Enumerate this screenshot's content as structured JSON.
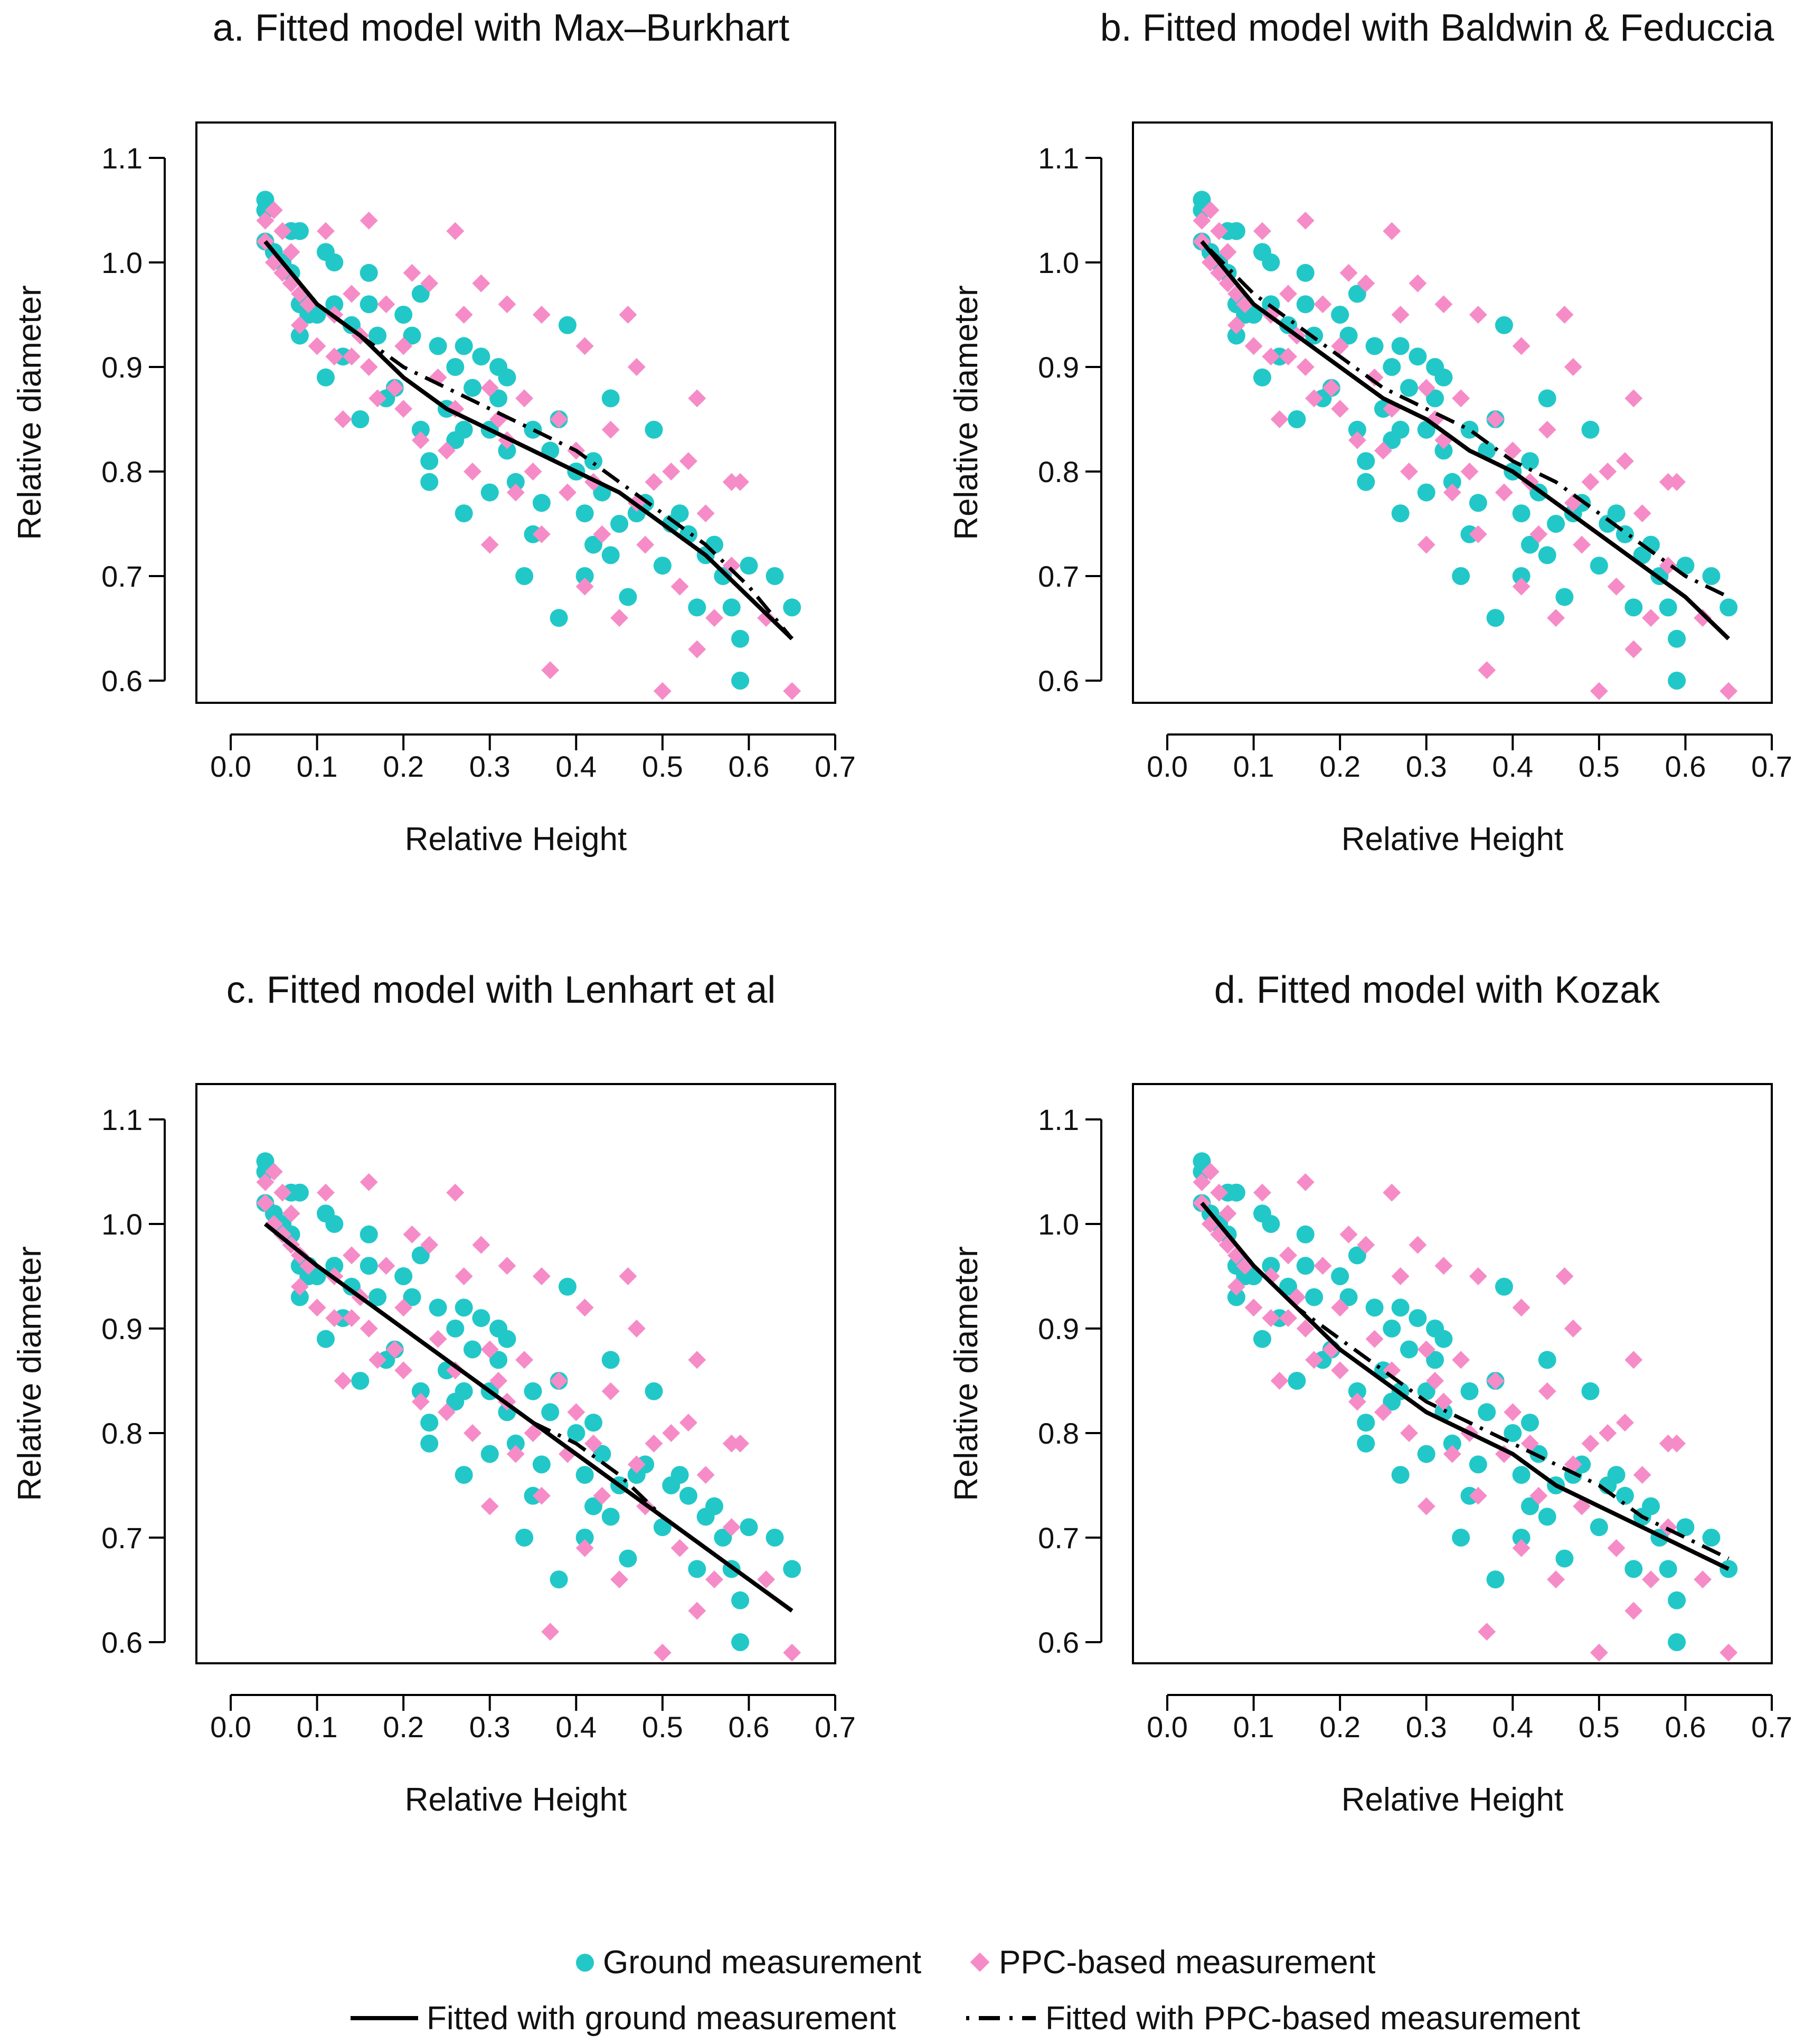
{
  "colors": {
    "ground": "#22C8C8",
    "ppc": "#F58CC8",
    "line": "#000000"
  },
  "legend": {
    "ground_points": "Ground measurement",
    "ppc_points": "PPC-based measurement",
    "ground_line": "Fitted with ground measurement",
    "ppc_line": "Fitted with PPC-based measurement"
  },
  "shared_points": {
    "ground": [
      [
        0.04,
        1.06
      ],
      [
        0.04,
        1.05
      ],
      [
        0.04,
        1.02
      ],
      [
        0.05,
        1.01
      ],
      [
        0.06,
        1.0
      ],
      [
        0.07,
        0.99
      ],
      [
        0.07,
        1.03
      ],
      [
        0.08,
        1.03
      ],
      [
        0.08,
        0.96
      ],
      [
        0.08,
        0.93
      ],
      [
        0.09,
        0.96
      ],
      [
        0.09,
        0.95
      ],
      [
        0.1,
        0.95
      ],
      [
        0.11,
        1.01
      ],
      [
        0.11,
        0.89
      ],
      [
        0.12,
        1.0
      ],
      [
        0.12,
        0.96
      ],
      [
        0.13,
        0.91
      ],
      [
        0.14,
        0.94
      ],
      [
        0.15,
        0.85
      ],
      [
        0.16,
        0.99
      ],
      [
        0.16,
        0.96
      ],
      [
        0.17,
        0.93
      ],
      [
        0.18,
        0.87
      ],
      [
        0.19,
        0.88
      ],
      [
        0.2,
        0.95
      ],
      [
        0.21,
        0.93
      ],
      [
        0.22,
        0.97
      ],
      [
        0.22,
        0.84
      ],
      [
        0.23,
        0.79
      ],
      [
        0.23,
        0.81
      ],
      [
        0.24,
        0.92
      ],
      [
        0.25,
        0.86
      ],
      [
        0.26,
        0.9
      ],
      [
        0.26,
        0.83
      ],
      [
        0.27,
        0.76
      ],
      [
        0.27,
        0.92
      ],
      [
        0.27,
        0.84
      ],
      [
        0.28,
        0.88
      ],
      [
        0.29,
        0.91
      ],
      [
        0.3,
        0.84
      ],
      [
        0.3,
        0.78
      ],
      [
        0.31,
        0.9
      ],
      [
        0.31,
        0.87
      ],
      [
        0.32,
        0.89
      ],
      [
        0.32,
        0.82
      ],
      [
        0.33,
        0.79
      ],
      [
        0.34,
        0.7
      ],
      [
        0.35,
        0.84
      ],
      [
        0.35,
        0.74
      ],
      [
        0.36,
        0.77
      ],
      [
        0.37,
        0.82
      ],
      [
        0.38,
        0.85
      ],
      [
        0.38,
        0.66
      ],
      [
        0.39,
        0.94
      ],
      [
        0.4,
        0.8
      ],
      [
        0.41,
        0.76
      ],
      [
        0.41,
        0.7
      ],
      [
        0.42,
        0.81
      ],
      [
        0.42,
        0.73
      ],
      [
        0.43,
        0.78
      ],
      [
        0.44,
        0.87
      ],
      [
        0.44,
        0.72
      ],
      [
        0.45,
        0.75
      ],
      [
        0.46,
        0.68
      ],
      [
        0.47,
        0.76
      ],
      [
        0.48,
        0.77
      ],
      [
        0.49,
        0.84
      ],
      [
        0.5,
        0.71
      ],
      [
        0.51,
        0.75
      ],
      [
        0.52,
        0.76
      ],
      [
        0.53,
        0.74
      ],
      [
        0.54,
        0.67
      ],
      [
        0.55,
        0.72
      ],
      [
        0.56,
        0.73
      ],
      [
        0.57,
        0.7
      ],
      [
        0.58,
        0.67
      ],
      [
        0.59,
        0.64
      ],
      [
        0.59,
        0.6
      ],
      [
        0.6,
        0.71
      ],
      [
        0.63,
        0.7
      ],
      [
        0.65,
        0.67
      ]
    ],
    "ppc": [
      [
        0.04,
        1.04
      ],
      [
        0.04,
        1.02
      ],
      [
        0.05,
        1.05
      ],
      [
        0.05,
        1.0
      ],
      [
        0.06,
        1.03
      ],
      [
        0.06,
        0.99
      ],
      [
        0.07,
        1.01
      ],
      [
        0.07,
        0.98
      ],
      [
        0.08,
        0.97
      ],
      [
        0.08,
        0.94
      ],
      [
        0.09,
        0.96
      ],
      [
        0.1,
        0.92
      ],
      [
        0.11,
        1.03
      ],
      [
        0.12,
        0.95
      ],
      [
        0.12,
        0.91
      ],
      [
        0.13,
        0.85
      ],
      [
        0.14,
        0.97
      ],
      [
        0.14,
        0.91
      ],
      [
        0.15,
        0.93
      ],
      [
        0.16,
        1.04
      ],
      [
        0.16,
        0.9
      ],
      [
        0.17,
        0.87
      ],
      [
        0.18,
        0.96
      ],
      [
        0.19,
        0.88
      ],
      [
        0.2,
        0.92
      ],
      [
        0.2,
        0.86
      ],
      [
        0.21,
        0.99
      ],
      [
        0.22,
        0.83
      ],
      [
        0.23,
        0.98
      ],
      [
        0.24,
        0.89
      ],
      [
        0.25,
        0.82
      ],
      [
        0.26,
        1.03
      ],
      [
        0.26,
        0.86
      ],
      [
        0.27,
        0.95
      ],
      [
        0.28,
        0.8
      ],
      [
        0.29,
        0.98
      ],
      [
        0.3,
        0.88
      ],
      [
        0.3,
        0.73
      ],
      [
        0.31,
        0.85
      ],
      [
        0.32,
        0.96
      ],
      [
        0.32,
        0.83
      ],
      [
        0.33,
        0.78
      ],
      [
        0.34,
        0.87
      ],
      [
        0.35,
        0.8
      ],
      [
        0.36,
        0.95
      ],
      [
        0.36,
        0.74
      ],
      [
        0.37,
        0.61
      ],
      [
        0.38,
        0.85
      ],
      [
        0.39,
        0.78
      ],
      [
        0.4,
        0.82
      ],
      [
        0.41,
        0.92
      ],
      [
        0.41,
        0.69
      ],
      [
        0.42,
        0.79
      ],
      [
        0.43,
        0.74
      ],
      [
        0.44,
        0.84
      ],
      [
        0.45,
        0.66
      ],
      [
        0.46,
        0.95
      ],
      [
        0.47,
        0.9
      ],
      [
        0.47,
        0.77
      ],
      [
        0.48,
        0.73
      ],
      [
        0.49,
        0.79
      ],
      [
        0.5,
        0.59
      ],
      [
        0.51,
        0.8
      ],
      [
        0.52,
        0.69
      ],
      [
        0.53,
        0.81
      ],
      [
        0.54,
        0.87
      ],
      [
        0.54,
        0.63
      ],
      [
        0.55,
        0.76
      ],
      [
        0.56,
        0.66
      ],
      [
        0.58,
        0.79
      ],
      [
        0.58,
        0.71
      ],
      [
        0.59,
        0.79
      ],
      [
        0.62,
        0.66
      ],
      [
        0.65,
        0.59
      ]
    ]
  },
  "chart_data": [
    {
      "type": "scatter",
      "title": "a. Fitted model with Max–Burkhart",
      "xlabel": "Relative Height",
      "ylabel": "Relative diameter",
      "xlim": [
        0.0,
        0.7
      ],
      "ylim": [
        0.6,
        1.1
      ],
      "xticks": [
        "0.0",
        "0.1",
        "0.2",
        "0.3",
        "0.4",
        "0.5",
        "0.6",
        "0.7"
      ],
      "yticks": [
        "0.6",
        "0.7",
        "0.8",
        "0.9",
        "1.0",
        "1.1"
      ],
      "grid": false,
      "lines": {
        "ground": {
          "x": [
            0.04,
            0.1,
            0.15,
            0.2,
            0.25,
            0.3,
            0.35,
            0.4,
            0.45,
            0.5,
            0.55,
            0.6,
            0.65
          ],
          "y": [
            1.02,
            0.96,
            0.93,
            0.89,
            0.86,
            0.84,
            0.82,
            0.8,
            0.78,
            0.75,
            0.72,
            0.68,
            0.64
          ]
        },
        "ppc": {
          "x": [
            0.04,
            0.1,
            0.15,
            0.2,
            0.25,
            0.3,
            0.35,
            0.4,
            0.45,
            0.5,
            0.55,
            0.6,
            0.65
          ],
          "y": [
            1.02,
            0.96,
            0.93,
            0.9,
            0.88,
            0.86,
            0.84,
            0.82,
            0.79,
            0.76,
            0.73,
            0.69,
            0.64
          ]
        }
      }
    },
    {
      "type": "scatter",
      "title": "b. Fitted model with Baldwin & Feduccia",
      "xlabel": "Relative Height",
      "ylabel": "Relative diameter",
      "xlim": [
        0.0,
        0.7
      ],
      "ylim": [
        0.6,
        1.1
      ],
      "xticks": [
        "0.0",
        "0.1",
        "0.2",
        "0.3",
        "0.4",
        "0.5",
        "0.6",
        "0.7"
      ],
      "yticks": [
        "0.6",
        "0.7",
        "0.8",
        "0.9",
        "1.0",
        "1.1"
      ],
      "grid": false,
      "lines": {
        "ground": {
          "x": [
            0.04,
            0.1,
            0.15,
            0.2,
            0.25,
            0.3,
            0.35,
            0.4,
            0.45,
            0.5,
            0.55,
            0.6,
            0.65
          ],
          "y": [
            1.02,
            0.96,
            0.93,
            0.9,
            0.87,
            0.85,
            0.82,
            0.8,
            0.77,
            0.74,
            0.71,
            0.68,
            0.64
          ]
        },
        "ppc": {
          "x": [
            0.04,
            0.1,
            0.15,
            0.2,
            0.25,
            0.3,
            0.35,
            0.4,
            0.45,
            0.5,
            0.55,
            0.6,
            0.65
          ],
          "y": [
            1.02,
            0.97,
            0.94,
            0.91,
            0.88,
            0.86,
            0.84,
            0.81,
            0.79,
            0.76,
            0.73,
            0.7,
            0.68
          ]
        }
      }
    },
    {
      "type": "scatter",
      "title": "c. Fitted model with Lenhart et al",
      "xlabel": "Relative Height",
      "ylabel": "Relative diameter",
      "xlim": [
        0.0,
        0.7
      ],
      "ylim": [
        0.6,
        1.1
      ],
      "xticks": [
        "0.0",
        "0.1",
        "0.2",
        "0.3",
        "0.4",
        "0.5",
        "0.6",
        "0.7"
      ],
      "yticks": [
        "0.6",
        "0.7",
        "0.8",
        "0.9",
        "1.0",
        "1.1"
      ],
      "grid": false,
      "lines": {
        "ground": {
          "x": [
            0.04,
            0.1,
            0.15,
            0.2,
            0.25,
            0.3,
            0.35,
            0.4,
            0.45,
            0.5,
            0.55,
            0.6,
            0.65
          ],
          "y": [
            1.0,
            0.96,
            0.93,
            0.9,
            0.87,
            0.84,
            0.81,
            0.78,
            0.75,
            0.72,
            0.69,
            0.66,
            0.63
          ]
        },
        "ppc": {
          "x": [
            0.04,
            0.1,
            0.15,
            0.2,
            0.25,
            0.3,
            0.35,
            0.4,
            0.45,
            0.5,
            0.55,
            0.6,
            0.65
          ],
          "y": [
            1.0,
            0.96,
            0.93,
            0.9,
            0.87,
            0.84,
            0.81,
            0.79,
            0.76,
            0.72,
            0.69,
            0.66,
            0.63
          ]
        }
      }
    },
    {
      "type": "scatter",
      "title": "d. Fitted model with Kozak",
      "xlabel": "Relative Height",
      "ylabel": "Relative diameter",
      "xlim": [
        0.0,
        0.7
      ],
      "ylim": [
        0.6,
        1.1
      ],
      "xticks": [
        "0.0",
        "0.1",
        "0.2",
        "0.3",
        "0.4",
        "0.5",
        "0.6",
        "0.7"
      ],
      "yticks": [
        "0.6",
        "0.7",
        "0.8",
        "0.9",
        "1.0",
        "1.1"
      ],
      "grid": false,
      "lines": {
        "ground": {
          "x": [
            0.04,
            0.1,
            0.15,
            0.2,
            0.25,
            0.3,
            0.35,
            0.4,
            0.45,
            0.5,
            0.55,
            0.6,
            0.65
          ],
          "y": [
            1.02,
            0.96,
            0.92,
            0.88,
            0.85,
            0.82,
            0.8,
            0.78,
            0.75,
            0.73,
            0.71,
            0.69,
            0.67
          ]
        },
        "ppc": {
          "x": [
            0.04,
            0.1,
            0.15,
            0.2,
            0.25,
            0.3,
            0.35,
            0.4,
            0.45,
            0.5,
            0.55,
            0.6,
            0.65
          ],
          "y": [
            1.02,
            0.96,
            0.92,
            0.89,
            0.86,
            0.83,
            0.81,
            0.79,
            0.77,
            0.75,
            0.72,
            0.7,
            0.68
          ]
        }
      }
    }
  ]
}
